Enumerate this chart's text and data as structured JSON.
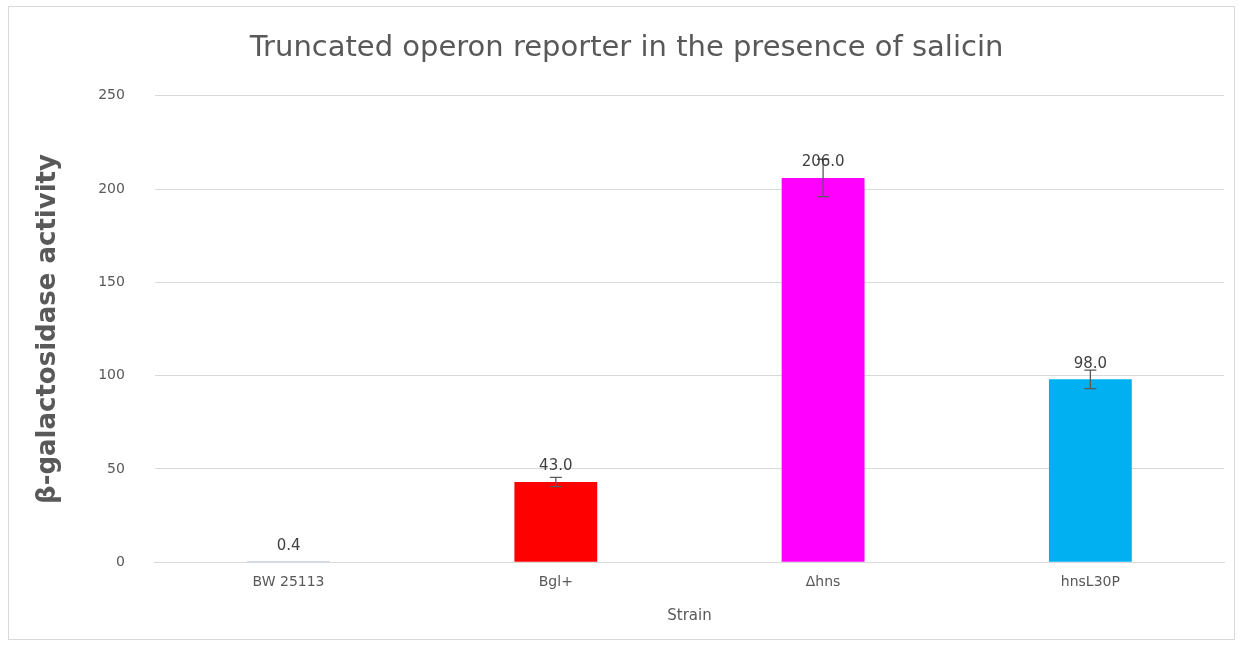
{
  "chart_data": {
    "type": "bar",
    "title": "Truncated operon reporter in the presence of salicin",
    "xlabel": "Strain",
    "ylabel": "β-galactosidase activity",
    "categories": [
      "BW 25113",
      "Bgl+",
      "Δhns",
      "hnsL30P"
    ],
    "values": [
      0.4,
      43,
      206,
      98
    ],
    "colors": [
      "#4472c4",
      "#ff0000",
      "#ff00ff",
      "#00b0f0"
    ],
    "errors": [
      null,
      2.5,
      10,
      5
    ],
    "value_labels": [
      "0.4",
      "43.0",
      "206.0",
      "98.0"
    ],
    "ylim": [
      0,
      250
    ],
    "yticks": [
      0,
      50,
      100,
      150,
      200,
      250
    ],
    "grid": "y",
    "legend": false
  }
}
